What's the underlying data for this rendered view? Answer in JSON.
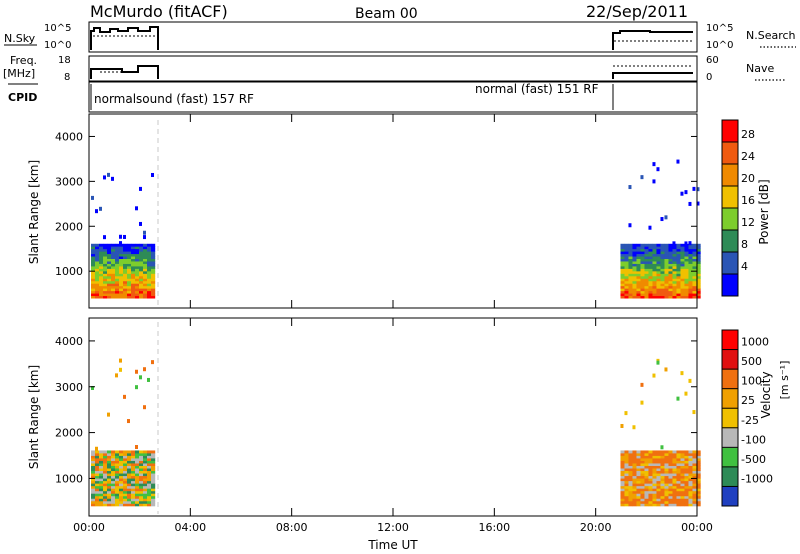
{
  "header": {
    "station": "McMurdo (fitACF)",
    "beam": "Beam 00",
    "date": "22/Sep/2011"
  },
  "sky_panel": {
    "left_label": "N.Sky",
    "right_label": "N.Search",
    "left_ticks": [
      "10^5",
      "10^0"
    ],
    "right_ticks": [
      "10^5",
      "10^0"
    ]
  },
  "freq_panel": {
    "left_label_1": "Freq.",
    "left_label_2": "[MHz]",
    "right_label": "Nave",
    "left_ticks": [
      "18",
      "8"
    ],
    "right_ticks": [
      "60",
      "0"
    ]
  },
  "cpid": {
    "label": "CPID",
    "segments": [
      "normalsound (fast) 157 RF",
      "normal (fast) 151 RF"
    ]
  },
  "chart_data": [
    {
      "type": "heatmap",
      "title": "",
      "xlabel": "Time UT",
      "ylabel": "Slant Range [km]",
      "x_ticks": [
        "00:00",
        "04:00",
        "08:00",
        "12:00",
        "16:00",
        "20:00",
        "00:00"
      ],
      "x_range_hours": [
        0,
        24
      ],
      "ylim": [
        180,
        4500
      ],
      "y_ticks": [
        1000,
        2000,
        3000,
        4000
      ],
      "colorbar": {
        "label": "Power [dB]",
        "ticks": [
          "28",
          "24",
          "20",
          "16",
          "12",
          "8",
          "4"
        ],
        "colors": [
          "#0000ff",
          "#2a55b5",
          "#2e8b57",
          "#7dcd2c",
          "#f0c000",
          "#f08a00",
          "#f05a10",
          "#ff0000"
        ]
      },
      "observation_windows_hours": [
        [
          0.0,
          2.6
        ],
        [
          20.9,
          24.0
        ]
      ],
      "echo_band_km": [
        400,
        1600
      ]
    },
    {
      "type": "heatmap",
      "title": "",
      "xlabel": "Time UT",
      "ylabel": "Slant Range [km]",
      "x_ticks": [
        "00:00",
        "04:00",
        "08:00",
        "12:00",
        "16:00",
        "20:00",
        "00:00"
      ],
      "x_range_hours": [
        0,
        24
      ],
      "ylim": [
        180,
        4500
      ],
      "y_ticks": [
        1000,
        2000,
        3000,
        4000
      ],
      "colorbar": {
        "label": "Velocity",
        "unit": "[m s⁻¹]",
        "ticks": [
          "1000",
          "500",
          "100",
          "25",
          "-25",
          "-100",
          "-500",
          "-1000"
        ],
        "colors": [
          "#2040c0",
          "#2e8b57",
          "#40c040",
          "#b8b8b8",
          "#f0c000",
          "#f0a000",
          "#f07010",
          "#e01010",
          "#ff0000"
        ]
      },
      "observation_windows_hours": [
        [
          0.0,
          2.6
        ],
        [
          20.9,
          24.0
        ]
      ],
      "echo_band_km": [
        400,
        1600
      ]
    }
  ]
}
